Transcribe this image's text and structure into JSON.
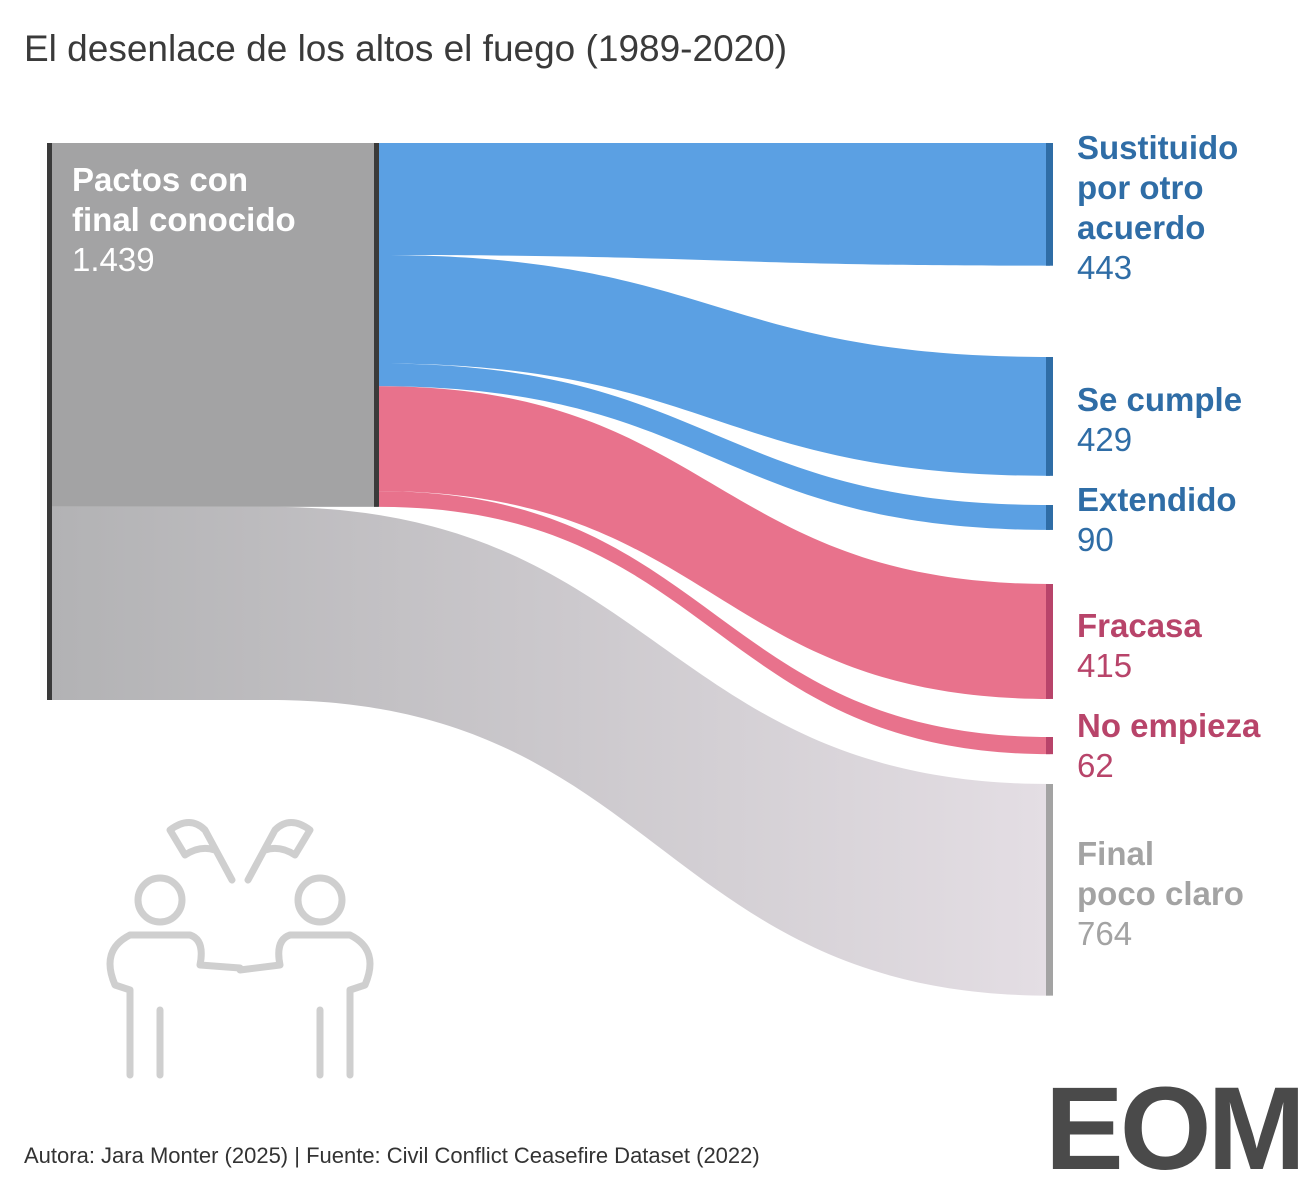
{
  "chart_data": {
    "type": "sankey",
    "title": "El desenlace de los altos el fuego (1989-2020)",
    "source_note": "Autora: Jara Monter (2025) | Fuente: Civil Conflict Ceasefire Dataset (2022)",
    "logo": "EOM",
    "known": {
      "name": "Pactos con\nfinal conocido",
      "value": 1439,
      "value_label": "1.439",
      "color": "#a3a3a4"
    },
    "outcomes": [
      {
        "name": "Sustituido\npor otro\nacuerdo",
        "value": 443,
        "color": "#5ba0e3",
        "label_color": "#2f6da6"
      },
      {
        "name": "Se cumple",
        "value": 429,
        "color": "#5ba0e3",
        "label_color": "#2f6da6"
      },
      {
        "name": "Extendido",
        "value": 90,
        "color": "#5ba0e3",
        "label_color": "#2f6da6"
      },
      {
        "name": "Fracasa",
        "value": 415,
        "color": "#e8728c",
        "label_color": "#b8446a"
      },
      {
        "name": "No empieza",
        "value": 62,
        "color": "#e8728c",
        "label_color": "#b8446a"
      }
    ],
    "unclear": {
      "name": "Final\npoco claro",
      "value": 764,
      "color": [
        "#b2b2b4",
        "#e4dee4"
      ],
      "label_color": "#a3a3a3"
    }
  }
}
